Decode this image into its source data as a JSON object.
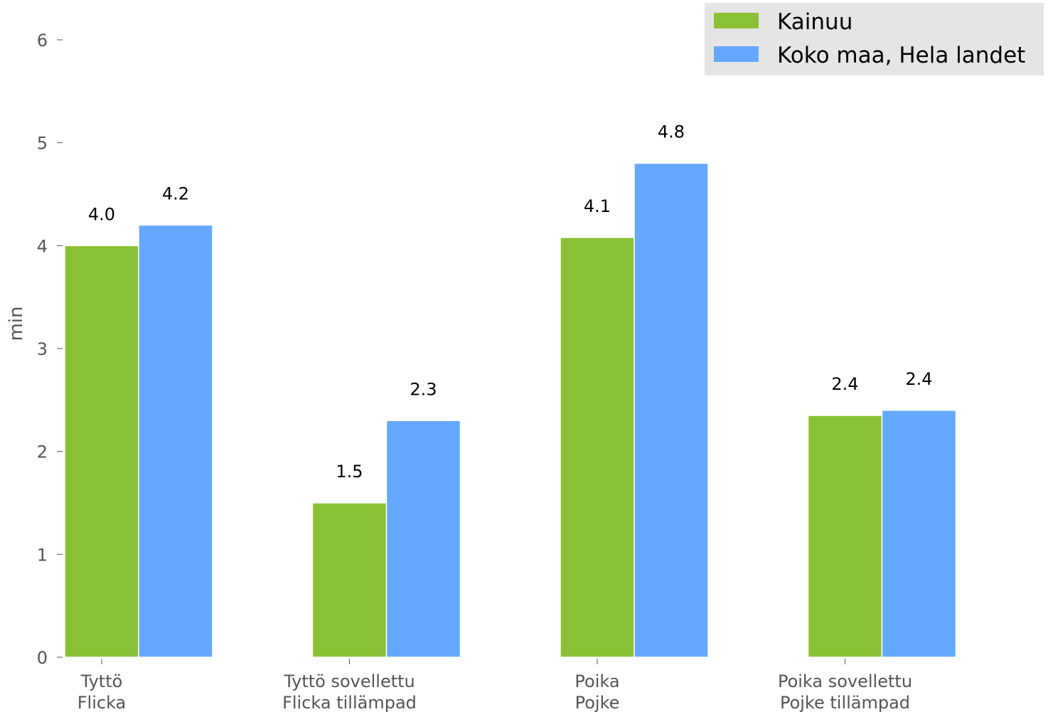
{
  "chart_data": {
    "type": "bar",
    "ylabel": "min",
    "ylim": [
      0,
      6
    ],
    "yticks": [
      0,
      1,
      2,
      3,
      4,
      5,
      6
    ],
    "grid": false,
    "legend_position": "top-right",
    "categories": [
      [
        "Tyttö",
        "Flicka"
      ],
      [
        "Tyttö sovellettu",
        "Flicka tillämpad"
      ],
      [
        "Poika",
        "Pojke"
      ],
      [
        "Poika sovellettu",
        "Pojke tillämpad"
      ]
    ],
    "series": [
      {
        "name": "Kainuu",
        "color": "#8bc136",
        "values": [
          4.0,
          1.5,
          4.08,
          2.35
        ],
        "labels": [
          "4.0",
          "1.5",
          "4.1",
          "2.4"
        ]
      },
      {
        "name": "Koko maa, Hela landet",
        "color": "#64a8ff",
        "values": [
          4.2,
          2.3,
          4.8,
          2.4
        ],
        "labels": [
          "4.2",
          "2.3",
          "4.8",
          "2.4"
        ]
      }
    ]
  }
}
